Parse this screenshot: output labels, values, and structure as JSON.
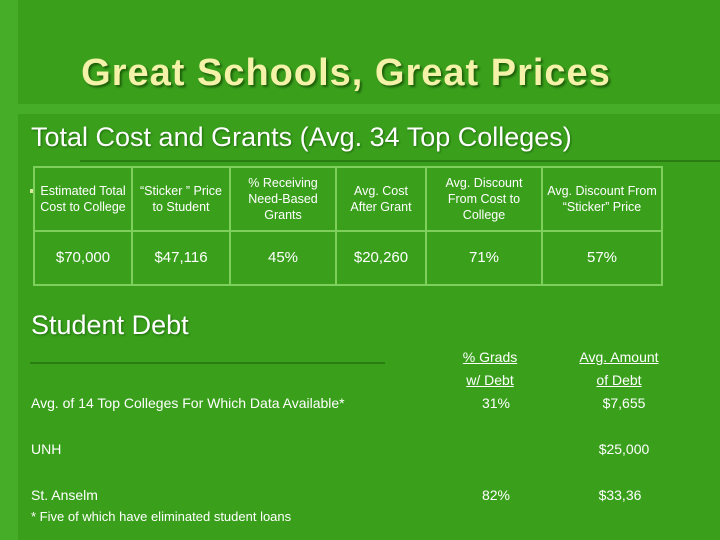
{
  "title": "Great Schools, Great Prices",
  "subtitle": "Total Cost and Grants (Avg. 34 Top Colleges)",
  "cost_table": {
    "headers": [
      "Estimated Total Cost to College",
      "“Sticker ” Price to Student",
      "% Receiving Need-Based Grants",
      "Avg. Cost After Grant",
      "Avg. Discount From Cost to College",
      "Avg. Discount From “Sticker” Price"
    ],
    "header_pct_word": "%",
    "header_pct_rest": "Receiving Need-Based Grants",
    "values": [
      "$70,000",
      "$47,116",
      "45%",
      "$20,260",
      "71%",
      "57%"
    ]
  },
  "debt": {
    "heading": "Student Debt",
    "col1_line1": "% Grads",
    "col1_line2": "w/ Debt",
    "col2_line1": "Avg. Amount",
    "col2_line2": "of Debt",
    "rows": [
      {
        "label": "Avg. of  14 Top Colleges For Which Data Available*",
        "pct": "31%",
        "amount": "$7,655"
      },
      {
        "label": "UNH",
        "pct": "",
        "amount": "$25,000"
      },
      {
        "label": "St. Anselm",
        "pct": "82%",
        "amount": "$33,36"
      }
    ],
    "footnote": "* Five of which have eliminated student loans"
  }
}
